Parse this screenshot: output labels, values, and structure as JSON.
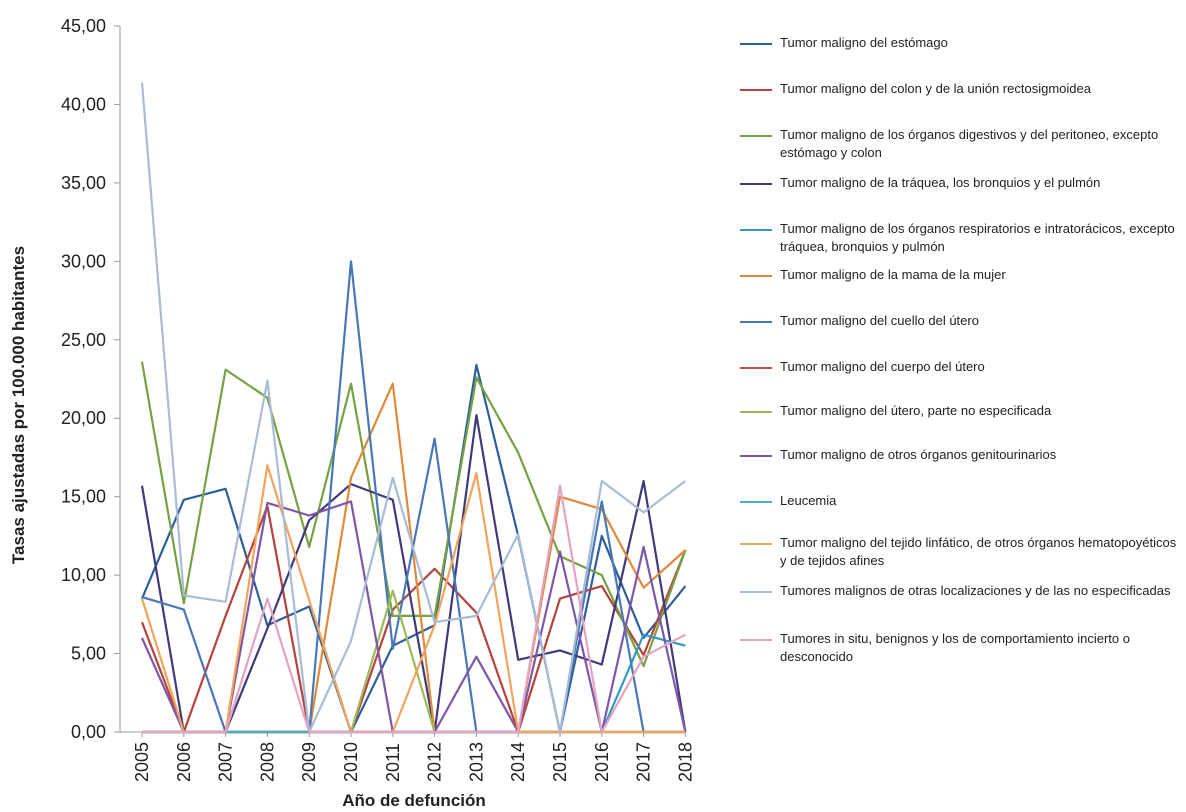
{
  "chart_data": {
    "type": "line",
    "title": "",
    "xlabel": "Año de defunción",
    "ylabel": "Tasas ajustadas por 100.000 habitantes",
    "ylim": [
      0,
      45
    ],
    "y_ticks": [
      "0,00",
      "5,00",
      "10,00",
      "15,00",
      "20,00",
      "25,00",
      "30,00",
      "35,00",
      "40,00",
      "45,00"
    ],
    "categories": [
      "2005",
      "2006",
      "2007",
      "2008",
      "2009",
      "2010",
      "2011",
      "2012",
      "2013",
      "2014",
      "2015",
      "2016",
      "2017",
      "2018"
    ],
    "grid": false,
    "legend_position": "right",
    "series": [
      {
        "name": "Tumor maligno del estómago",
        "color": "#2f5f9a",
        "values": [
          8.5,
          14.8,
          15.5,
          6.8,
          8.0,
          0.0,
          5.5,
          6.8,
          23.4,
          12.5,
          0.0,
          12.5,
          6.0,
          9.3
        ]
      },
      {
        "name": "Tumor maligno del colon y de la unión rectosigmoidea",
        "color": "#b5423c",
        "values": [
          7.0,
          0.0,
          7.4,
          14.4,
          0.0,
          0.0,
          7.8,
          10.4,
          7.6,
          0.0,
          8.5,
          9.3,
          4.9,
          11.6
        ]
      },
      {
        "name": "Tumor maligno de los órganos digestivos y del peritoneo, excepto estómago y colon",
        "color": "#77a142",
        "values": [
          23.6,
          8.2,
          23.1,
          21.3,
          11.8,
          22.2,
          7.4,
          7.4,
          22.6,
          17.8,
          11.2,
          10.0,
          4.2,
          11.6
        ]
      },
      {
        "name": "Tumor maligno de la tráquea, los bronquios y el pulmón",
        "color": "#3f3a7a",
        "values": [
          15.7,
          0.0,
          0.0,
          6.6,
          13.5,
          15.8,
          14.8,
          0.0,
          20.2,
          4.6,
          5.2,
          4.3,
          16.0,
          0.0
        ]
      },
      {
        "name": "Tumor maligno de los órganos respiratorios e intratorácicos, excepto tráquea, bronquios y pulmón",
        "color": "#2e9bc1",
        "values": [
          0.0,
          0.0,
          0.0,
          0.0,
          0.0,
          0.0,
          0.0,
          0.0,
          0.0,
          0.0,
          0.0,
          0.0,
          6.2,
          5.5
        ]
      },
      {
        "name": "Tumor maligno de la mama de la mujer",
        "color": "#dd8a3c",
        "values": [
          0.0,
          0.0,
          0.0,
          0.0,
          0.0,
          16.2,
          22.2,
          0.0,
          0.0,
          0.0,
          15.0,
          14.2,
          9.2,
          11.6
        ]
      },
      {
        "name": "Tumor maligno del cuello del útero",
        "color": "#4a78b6",
        "values": [
          8.6,
          7.8,
          0.0,
          0.0,
          0.0,
          30.0,
          5.3,
          18.7,
          0.0,
          0.0,
          0.0,
          14.7,
          0.0,
          0.0
        ]
      },
      {
        "name": "Tumor maligno del cuerpo del útero",
        "color": "#c0504d",
        "values": [
          0.0,
          0.0,
          0.0,
          0.0,
          0.0,
          0.0,
          0.0,
          0.0,
          0.0,
          0.0,
          0.0,
          0.0,
          0.0,
          0.0
        ]
      },
      {
        "name": "Tumor maligno del útero, parte no especificada",
        "color": "#9bbb59",
        "values": [
          0.0,
          0.0,
          0.0,
          0.0,
          0.0,
          0.0,
          9.0,
          0.0,
          0.0,
          0.0,
          0.0,
          0.0,
          0.0,
          0.0
        ]
      },
      {
        "name": "Tumor maligno de otros órganos genitourinarios",
        "color": "#7e58a6",
        "values": [
          6.0,
          0.0,
          0.0,
          14.6,
          13.8,
          14.7,
          0.0,
          0.0,
          4.8,
          0.0,
          11.5,
          0.0,
          11.8,
          0.0
        ]
      },
      {
        "name": "Leucemia",
        "color": "#4bacc6",
        "values": [
          0.0,
          0.0,
          0.0,
          0.0,
          0.0,
          0.0,
          0.0,
          0.0,
          0.0,
          0.0,
          0.0,
          0.0,
          0.0,
          0.0
        ]
      },
      {
        "name": "Tumor maligno del tejido linfático, de otros órganos hematopoyéticos y de tejidos afines",
        "color": "#f0a45c",
        "values": [
          8.5,
          0.0,
          0.0,
          17.0,
          8.4,
          0.0,
          0.0,
          6.8,
          16.5,
          0.0,
          0.0,
          0.0,
          0.0,
          0.0
        ]
      },
      {
        "name": "Tumores malignos de otras localizaciones y de las no especificadas",
        "color": "#a9bcd6",
        "values": [
          41.4,
          8.7,
          8.3,
          22.4,
          0.0,
          5.8,
          16.2,
          7.0,
          7.4,
          12.6,
          0.0,
          16.0,
          14.0,
          16.0
        ]
      },
      {
        "name": "Tumores in situ, benignos y los de comportamiento incierto o desconocido",
        "color": "#e3a3c3",
        "values": [
          0.0,
          0.0,
          0.0,
          8.5,
          0.0,
          0.0,
          0.0,
          0.0,
          0.0,
          0.0,
          15.7,
          0.0,
          4.8,
          6.2
        ]
      }
    ]
  }
}
